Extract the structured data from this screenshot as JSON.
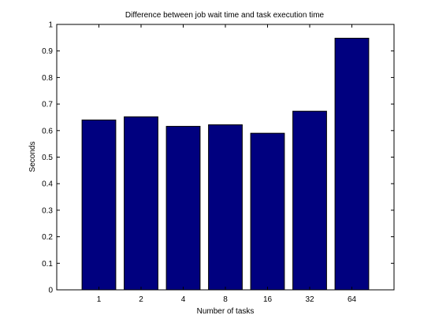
{
  "chart_data": {
    "type": "bar",
    "title": "Difference between job wait time and task execution time",
    "xlabel": "Number of tasks",
    "ylabel": "Seconds",
    "categories": [
      "1",
      "2",
      "4",
      "8",
      "16",
      "32",
      "64"
    ],
    "values": [
      0.64,
      0.652,
      0.616,
      0.622,
      0.59,
      0.673,
      0.948
    ],
    "ylim": [
      0,
      1
    ],
    "yticks": [
      0,
      0.1,
      0.2,
      0.3,
      0.4,
      0.5,
      0.6,
      0.7,
      0.8,
      0.9,
      1
    ],
    "ytick_labels": [
      "0",
      "0.1",
      "0.2",
      "0.3",
      "0.4",
      "0.5",
      "0.6",
      "0.7",
      "0.8",
      "0.9",
      "1"
    ],
    "grid": false,
    "colors": {
      "bar_fill": "#00007f",
      "bar_edge": "#000000",
      "axes": "#000000",
      "background": "#ffffff"
    }
  }
}
